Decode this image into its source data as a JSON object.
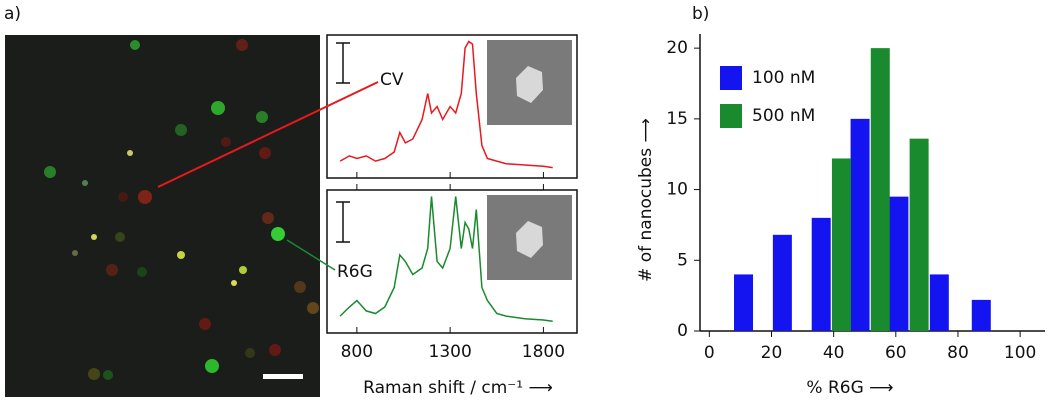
{
  "chart_data": [
    {
      "type": "line",
      "panel_label": "a)",
      "xlabel": "Raman shift / cm⁻¹ ⟶",
      "x": [
        710,
        760,
        800,
        850,
        900,
        950,
        1000,
        1030,
        1060,
        1100,
        1150,
        1180,
        1200,
        1230,
        1260,
        1300,
        1330,
        1360,
        1380,
        1400,
        1420,
        1440,
        1470,
        1500,
        1550,
        1600,
        1700,
        1800,
        1850
      ],
      "series": [
        {
          "name": "CV",
          "color": "#e8191c",
          "values": [
            0.08,
            0.12,
            0.1,
            0.12,
            0.08,
            0.1,
            0.15,
            0.3,
            0.22,
            0.25,
            0.4,
            0.6,
            0.45,
            0.5,
            0.4,
            0.5,
            0.45,
            0.6,
            0.95,
            1.0,
            0.98,
            0.6,
            0.2,
            0.1,
            0.08,
            0.06,
            0.05,
            0.04,
            0.03
          ]
        },
        {
          "name": "R6G",
          "color": "#1a8a2e",
          "values": [
            0.08,
            0.15,
            0.2,
            0.12,
            0.1,
            0.15,
            0.3,
            0.55,
            0.5,
            0.4,
            0.45,
            0.6,
            1.0,
            0.5,
            0.45,
            0.6,
            1.0,
            0.6,
            0.8,
            0.75,
            0.6,
            0.9,
            0.3,
            0.2,
            0.1,
            0.08,
            0.06,
            0.05,
            0.04
          ]
        }
      ],
      "xlim": [
        640,
        1980
      ],
      "xticks": [
        800,
        1300,
        1800
      ],
      "ylim": [
        -0.05,
        1.05
      ]
    },
    {
      "type": "bar",
      "panel_label": "b)",
      "xlabel": "% R6G ⟶",
      "ylabel": "# of nanocubes ⟶",
      "x": [
        11,
        23.5,
        36,
        42.5,
        48.5,
        55,
        61,
        67.5,
        74,
        87.5
      ],
      "series": [
        {
          "name": "100 nM",
          "color": "#1414f0",
          "values": [
            4,
            6.8,
            8,
            null,
            15,
            null,
            9.5,
            null,
            4,
            2.2
          ]
        },
        {
          "name": "500 nM",
          "color": "#1a8a2e",
          "values": [
            null,
            null,
            null,
            12.2,
            null,
            20,
            null,
            13.6,
            null,
            null
          ]
        }
      ],
      "xlim": [
        -3,
        108
      ],
      "xticks": [
        0,
        20,
        40,
        60,
        80,
        100
      ],
      "ylim": [
        0,
        21
      ],
      "yticks": [
        0,
        5,
        10,
        15,
        20
      ],
      "legend": "upper-left"
    }
  ]
}
